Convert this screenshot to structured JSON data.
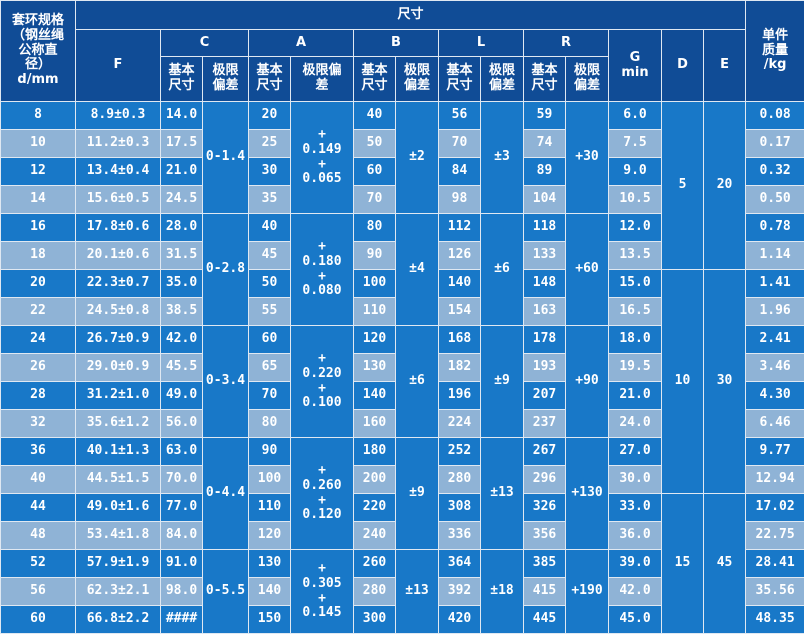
{
  "headers": {
    "spec": "套环规格\n（钢丝绳\n公称直\n径）\nd/mm",
    "dimensions": "尺寸",
    "F": "F",
    "C": "C",
    "A": "A",
    "B": "B",
    "L": "L",
    "R": "R",
    "G": "G\nmin",
    "D": "D",
    "E": "E",
    "weight": "单件\n质量\n/kg",
    "basic_size": "基本\n尺寸",
    "tolerance": "极限\n偏差",
    "tolerance_A": "极限偏\n差"
  },
  "rows": [
    {
      "d": "8",
      "F": "8.9±0.3",
      "C": "14.0",
      "A": "20",
      "B": "40",
      "L": "56",
      "R": "59",
      "G": "6.0",
      "weight": "0.08"
    },
    {
      "d": "10",
      "F": "11.2±0.3",
      "C": "17.5",
      "A": "25",
      "B": "50",
      "L": "70",
      "R": "74",
      "G": "7.5",
      "weight": "0.17"
    },
    {
      "d": "12",
      "F": "13.4±0.4",
      "C": "21.0",
      "A": "30",
      "B": "60",
      "L": "84",
      "R": "89",
      "G": "9.0",
      "weight": "0.32"
    },
    {
      "d": "14",
      "F": "15.6±0.5",
      "C": "24.5",
      "A": "35",
      "B": "70",
      "L": "98",
      "R": "104",
      "G": "10.5",
      "weight": "0.50"
    },
    {
      "d": "16",
      "F": "17.8±0.6",
      "C": "28.0",
      "A": "40",
      "B": "80",
      "L": "112",
      "R": "118",
      "G": "12.0",
      "weight": "0.78"
    },
    {
      "d": "18",
      "F": "20.1±0.6",
      "C": "31.5",
      "A": "45",
      "B": "90",
      "L": "126",
      "R": "133",
      "G": "13.5",
      "weight": "1.14"
    },
    {
      "d": "20",
      "F": "22.3±0.7",
      "C": "35.0",
      "A": "50",
      "B": "100",
      "L": "140",
      "R": "148",
      "G": "15.0",
      "weight": "1.41"
    },
    {
      "d": "22",
      "F": "24.5±0.8",
      "C": "38.5",
      "A": "55",
      "B": "110",
      "L": "154",
      "R": "163",
      "G": "16.5",
      "weight": "1.96"
    },
    {
      "d": "24",
      "F": "26.7±0.9",
      "C": "42.0",
      "A": "60",
      "B": "120",
      "L": "168",
      "R": "178",
      "G": "18.0",
      "weight": "2.41"
    },
    {
      "d": "26",
      "F": "29.0±0.9",
      "C": "45.5",
      "A": "65",
      "B": "130",
      "L": "182",
      "R": "193",
      "G": "19.5",
      "weight": "3.46"
    },
    {
      "d": "28",
      "F": "31.2±1.0",
      "C": "49.0",
      "A": "70",
      "B": "140",
      "L": "196",
      "R": "207",
      "G": "21.0",
      "weight": "4.30"
    },
    {
      "d": "32",
      "F": "35.6±1.2",
      "C": "56.0",
      "A": "80",
      "B": "160",
      "L": "224",
      "R": "237",
      "G": "24.0",
      "weight": "6.46"
    },
    {
      "d": "36",
      "F": "40.1±1.3",
      "C": "63.0",
      "A": "90",
      "B": "180",
      "L": "252",
      "R": "267",
      "G": "27.0",
      "weight": "9.77"
    },
    {
      "d": "40",
      "F": "44.5±1.5",
      "C": "70.0",
      "A": "100",
      "B": "200",
      "L": "280",
      "R": "296",
      "G": "30.0",
      "weight": "12.94"
    },
    {
      "d": "44",
      "F": "49.0±1.6",
      "C": "77.0",
      "A": "110",
      "B": "220",
      "L": "308",
      "R": "326",
      "G": "33.0",
      "weight": "17.02"
    },
    {
      "d": "48",
      "F": "53.4±1.8",
      "C": "84.0",
      "A": "120",
      "B": "240",
      "L": "336",
      "R": "356",
      "G": "36.0",
      "weight": "22.75"
    },
    {
      "d": "52",
      "F": "57.9±1.9",
      "C": "91.0",
      "A": "130",
      "B": "260",
      "L": "364",
      "R": "385",
      "G": "39.0",
      "weight": "28.41"
    },
    {
      "d": "56",
      "F": "62.3±2.1",
      "C": "98.0",
      "A": "140",
      "B": "280",
      "L": "392",
      "R": "415",
      "G": "42.0",
      "weight": "35.56"
    },
    {
      "d": "60",
      "F": "66.8±2.2",
      "C": "####",
      "A": "150",
      "B": "300",
      "L": "420",
      "R": "445",
      "G": "45.0",
      "weight": "48.35"
    }
  ],
  "groups": [
    {
      "start": 0,
      "span": 4,
      "C_tol": "0-1.4",
      "A_tol": "+\n0.149\n+\n0.065",
      "B_tol": "±2",
      "L_tol": "±3",
      "R_tol": "+30"
    },
    {
      "start": 4,
      "span": 4,
      "C_tol": "0-2.8",
      "A_tol": "+\n0.180\n+\n0.080",
      "B_tol": "±4",
      "L_tol": "±6",
      "R_tol": "+60"
    },
    {
      "start": 8,
      "span": 4,
      "C_tol": "0-3.4",
      "A_tol": "+\n0.220\n+\n0.100",
      "B_tol": "±6",
      "L_tol": "±9",
      "R_tol": "+90"
    },
    {
      "start": 12,
      "span": 4,
      "C_tol": "0-4.4",
      "A_tol": "+\n0.260\n+\n0.120",
      "B_tol": "±9",
      "L_tol": "±13",
      "R_tol": "+130"
    },
    {
      "start": 16,
      "span": 3,
      "C_tol": "0-5.5",
      "A_tol": "+\n0.305\n+\n0.145",
      "B_tol": "±13",
      "L_tol": "±18",
      "R_tol": "+190"
    }
  ],
  "de_groups": [
    {
      "start": 0,
      "span": 6,
      "D": "5",
      "E": "20"
    },
    {
      "start": 6,
      "span": 8,
      "D": "10",
      "E": "30"
    },
    {
      "start": 14,
      "span": 5,
      "D": "15",
      "E": "45"
    }
  ]
}
